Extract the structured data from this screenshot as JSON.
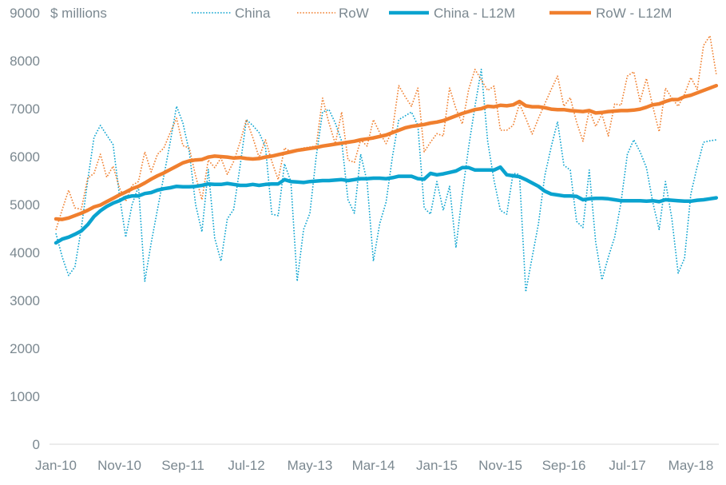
{
  "chart_data": {
    "type": "line",
    "ylabel": "$ millions",
    "ylim": [
      0,
      9000
    ],
    "yticks": [
      "0",
      "1000",
      "2000",
      "3000",
      "4000",
      "5000",
      "6000",
      "7000",
      "8000",
      "9000"
    ],
    "x_start": "Jan-10",
    "x_frequency": "monthly",
    "xticks": [
      {
        "label": "Jan-10",
        "index": 0
      },
      {
        "label": "Nov-10",
        "index": 10
      },
      {
        "label": "Sep-11",
        "index": 20
      },
      {
        "label": "Jul-12",
        "index": 30
      },
      {
        "label": "May-13",
        "index": 40
      },
      {
        "label": "Mar-14",
        "index": 50
      },
      {
        "label": "Jan-15",
        "index": 60
      },
      {
        "label": "Nov-15",
        "index": 70
      },
      {
        "label": "Sep-16",
        "index": 80
      },
      {
        "label": "Jul-17",
        "index": 90
      },
      {
        "label": "May-18",
        "index": 100
      }
    ],
    "grid": false,
    "legend_position": "top",
    "series": [
      {
        "name": "China",
        "style": "dotted",
        "color": "#0aa3cf",
        "values": [
          4400,
          3900,
          3520,
          3700,
          4500,
          5500,
          6400,
          6650,
          6450,
          6250,
          5200,
          4320,
          5000,
          5380,
          3400,
          4200,
          4900,
          5600,
          6300,
          7050,
          6700,
          6100,
          5000,
          4430,
          5730,
          4300,
          3820,
          4700,
          4900,
          5800,
          6770,
          6650,
          6500,
          6200,
          4800,
          4770,
          5850,
          5480,
          3400,
          4480,
          4820,
          6000,
          6930,
          6980,
          6700,
          6320,
          5100,
          4820,
          6050,
          5480,
          3820,
          4600,
          5050,
          6000,
          6770,
          6850,
          6930,
          6650,
          4930,
          4800,
          5480,
          4880,
          5380,
          4100,
          5220,
          6200,
          7050,
          7820,
          6320,
          5500,
          4880,
          4800,
          5650,
          5630,
          3180,
          3900,
          4600,
          5600,
          6200,
          6730,
          5820,
          5720,
          4650,
          4520,
          5720,
          4220,
          3430,
          3900,
          4320,
          5050,
          6050,
          6350,
          6100,
          5770,
          5050,
          4480,
          5480,
          4720,
          3570,
          3880,
          5220,
          5800,
          6300,
          6330,
          6350
        ]
      },
      {
        "name": "RoW",
        "style": "dotted",
        "color": "#f07f2e",
        "values": [
          4470,
          4900,
          5300,
          4930,
          4900,
          5550,
          5650,
          6050,
          5570,
          5800,
          5350,
          5070,
          5400,
          5480,
          6100,
          5680,
          6050,
          6180,
          6500,
          6800,
          6230,
          6180,
          5600,
          5100,
          5930,
          5770,
          5970,
          5630,
          5900,
          6300,
          6770,
          6400,
          5980,
          6350,
          5900,
          5520,
          6180,
          6100,
          6150,
          6180,
          6200,
          6220,
          7220,
          6700,
          6270,
          6930,
          5930,
          5880,
          6350,
          6220,
          6770,
          6500,
          6270,
          6550,
          7480,
          7250,
          7050,
          7430,
          6100,
          6300,
          6480,
          6430,
          7430,
          7000,
          6680,
          7400,
          7820,
          7600,
          7380,
          7470,
          6550,
          6550,
          6650,
          7100,
          6800,
          6470,
          6800,
          7100,
          7400,
          7680,
          7050,
          7230,
          6720,
          6320,
          6970,
          6630,
          6880,
          6430,
          7100,
          7070,
          7680,
          7770,
          7150,
          7630,
          7050,
          6520,
          7430,
          7220,
          7050,
          7300,
          7650,
          7400,
          8320,
          8520,
          7720
        ]
      },
      {
        "name": "China - L12M",
        "style": "solid",
        "color": "#0aa3cf",
        "values": [
          4200,
          4280,
          4320,
          4380,
          4450,
          4580,
          4750,
          4870,
          4960,
          5030,
          5080,
          5150,
          5180,
          5180,
          5230,
          5250,
          5300,
          5330,
          5350,
          5380,
          5370,
          5370,
          5380,
          5400,
          5430,
          5420,
          5420,
          5440,
          5420,
          5400,
          5400,
          5420,
          5400,
          5420,
          5430,
          5430,
          5520,
          5480,
          5470,
          5460,
          5480,
          5490,
          5500,
          5500,
          5510,
          5520,
          5500,
          5520,
          5540,
          5540,
          5550,
          5550,
          5540,
          5560,
          5590,
          5590,
          5590,
          5540,
          5530,
          5650,
          5620,
          5640,
          5670,
          5700,
          5770,
          5770,
          5720,
          5720,
          5720,
          5720,
          5780,
          5620,
          5600,
          5580,
          5520,
          5450,
          5380,
          5280,
          5220,
          5200,
          5180,
          5180,
          5170,
          5100,
          5120,
          5130,
          5130,
          5120,
          5100,
          5080,
          5080,
          5080,
          5080,
          5070,
          5080,
          5060,
          5100,
          5090,
          5080,
          5070,
          5070,
          5090,
          5100,
          5120,
          5140
        ]
      },
      {
        "name": "RoW - L12M",
        "style": "solid",
        "color": "#f07f2e",
        "values": [
          4700,
          4690,
          4720,
          4770,
          4820,
          4880,
          4950,
          4990,
          5060,
          5130,
          5200,
          5260,
          5330,
          5380,
          5450,
          5530,
          5600,
          5660,
          5730,
          5800,
          5870,
          5910,
          5930,
          5940,
          5990,
          6010,
          6000,
          5990,
          5970,
          5980,
          5960,
          5950,
          5960,
          5990,
          6010,
          6040,
          6070,
          6100,
          6130,
          6150,
          6170,
          6190,
          6220,
          6240,
          6260,
          6280,
          6300,
          6320,
          6350,
          6370,
          6390,
          6420,
          6450,
          6500,
          6550,
          6600,
          6630,
          6650,
          6670,
          6700,
          6720,
          6750,
          6800,
          6850,
          6900,
          6940,
          6980,
          7000,
          7050,
          7040,
          7070,
          7060,
          7080,
          7150,
          7060,
          7040,
          7040,
          7020,
          6990,
          6980,
          6980,
          6960,
          6950,
          6940,
          6960,
          6910,
          6920,
          6940,
          6950,
          6960,
          6960,
          6970,
          6990,
          7030,
          7080,
          7100,
          7150,
          7190,
          7190,
          7250,
          7280,
          7330,
          7380,
          7430,
          7480
        ]
      }
    ]
  }
}
